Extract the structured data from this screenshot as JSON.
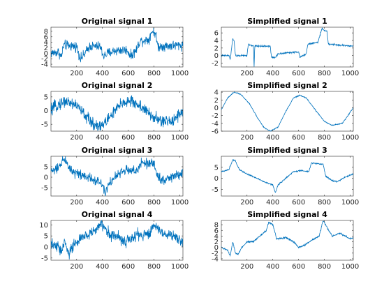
{
  "chart_data": [
    {
      "type": "line",
      "title": "Original signal 1",
      "xlim": [
        1,
        1024
      ],
      "ylim": [
        -5,
        9.5
      ],
      "xticks": [
        200,
        400,
        600,
        800,
        1000
      ],
      "yticks": [
        -4,
        -2,
        0,
        2,
        4,
        6,
        8
      ],
      "color": "#0072bd",
      "noise": 0.9,
      "series": [
        {
          "anchors": [
            [
              1,
              0
            ],
            [
              60,
              0.5
            ],
            [
              80,
              -1.5
            ],
            [
              100,
              3
            ],
            [
              200,
              2.5
            ],
            [
              230,
              -2
            ],
            [
              260,
              -0.5
            ],
            [
              300,
              2.5
            ],
            [
              380,
              2.5
            ],
            [
              410,
              -1
            ],
            [
              440,
              0
            ],
            [
              500,
              1
            ],
            [
              590,
              1.2
            ],
            [
              620,
              -1
            ],
            [
              660,
              1
            ],
            [
              690,
              4.5
            ],
            [
              760,
              5
            ],
            [
              780,
              8
            ],
            [
              810,
              7.5
            ],
            [
              830,
              2.5
            ],
            [
              1024,
              3
            ]
          ]
        }
      ]
    },
    {
      "type": "line",
      "title": "Simplified signal 1",
      "xlim": [
        1,
        1024
      ],
      "ylim": [
        -3,
        7.5
      ],
      "xticks": [
        200,
        400,
        600,
        800,
        1000
      ],
      "yticks": [
        -2,
        0,
        2,
        4,
        6
      ],
      "color": "#0072bd",
      "noise": 0.12,
      "series": [
        {
          "anchors": [
            [
              1,
              0
            ],
            [
              60,
              0
            ],
            [
              70,
              -1
            ],
            [
              90,
              4.5
            ],
            [
              100,
              4
            ],
            [
              110,
              0
            ],
            [
              200,
              0
            ],
            [
              210,
              3
            ],
            [
              250,
              2.5
            ],
            [
              255,
              -3
            ],
            [
              260,
              2.5
            ],
            [
              380,
              2.5
            ],
            [
              390,
              -0.5
            ],
            [
              420,
              -0.5
            ],
            [
              440,
              0.5
            ],
            [
              530,
              0.8
            ],
            [
              600,
              1
            ],
            [
              610,
              -0.5
            ],
            [
              660,
              0.5
            ],
            [
              670,
              3
            ],
            [
              750,
              3.5
            ],
            [
              780,
              7
            ],
            [
              820,
              6.5
            ],
            [
              830,
              3
            ],
            [
              1024,
              2.5
            ]
          ]
        }
      ]
    },
    {
      "type": "line",
      "title": "Original signal 2",
      "xlim": [
        1,
        1024
      ],
      "ylim": [
        -7.5,
        7
      ],
      "xticks": [
        200,
        400,
        600,
        800,
        1000
      ],
      "yticks": [
        -5,
        0,
        5
      ],
      "color": "#0072bd",
      "noise": 1.1,
      "series": [
        {
          "anchors": [
            [
              1,
              0
            ],
            [
              50,
              2
            ],
            [
              110,
              3.5
            ],
            [
              200,
              2
            ],
            [
              270,
              -2
            ],
            [
              330,
              -5
            ],
            [
              400,
              -5.5
            ],
            [
              480,
              -1
            ],
            [
              560,
              3
            ],
            [
              620,
              3.5
            ],
            [
              700,
              1.5
            ],
            [
              780,
              -2
            ],
            [
              860,
              -4
            ],
            [
              930,
              -4
            ],
            [
              1024,
              0
            ]
          ]
        }
      ]
    },
    {
      "type": "line",
      "title": "Simplified signal 2",
      "xlim": [
        1,
        1024
      ],
      "ylim": [
        -6,
        4.2
      ],
      "xticks": [
        200,
        400,
        600,
        800,
        1000
      ],
      "yticks": [
        -6,
        -4,
        -2,
        0,
        2,
        4
      ],
      "color": "#0072bd",
      "noise": 0.06,
      "series": [
        {
          "anchors": [
            [
              1,
              -0.5
            ],
            [
              50,
              2.5
            ],
            [
              100,
              4
            ],
            [
              150,
              3.5
            ],
            [
              220,
              1
            ],
            [
              280,
              -2.5
            ],
            [
              330,
              -5
            ],
            [
              380,
              -6
            ],
            [
              440,
              -5
            ],
            [
              500,
              -1
            ],
            [
              560,
              2.5
            ],
            [
              610,
              3.2
            ],
            [
              660,
              2.5
            ],
            [
              740,
              -1
            ],
            [
              800,
              -3.5
            ],
            [
              860,
              -4.5
            ],
            [
              940,
              -4
            ],
            [
              1024,
              0
            ]
          ]
        }
      ]
    },
    {
      "type": "line",
      "title": "Original signal 3",
      "xlim": [
        1,
        1024
      ],
      "ylim": [
        -9,
        10
      ],
      "xticks": [
        200,
        400,
        600,
        800,
        1000
      ],
      "yticks": [
        -5,
        0,
        5
      ],
      "color": "#0072bd",
      "noise": 1.2,
      "series": [
        {
          "anchors": [
            [
              1,
              3
            ],
            [
              60,
              4
            ],
            [
              90,
              8.5
            ],
            [
              120,
              7.5
            ],
            [
              160,
              3
            ],
            [
              200,
              2
            ],
            [
              260,
              1
            ],
            [
              330,
              -1
            ],
            [
              400,
              -3
            ],
            [
              420,
              -7
            ],
            [
              450,
              -3
            ],
            [
              500,
              0
            ],
            [
              560,
              3
            ],
            [
              620,
              3.5
            ],
            [
              680,
              3
            ],
            [
              700,
              7
            ],
            [
              760,
              6.5
            ],
            [
              800,
              7
            ],
            [
              820,
              1
            ],
            [
              860,
              -1
            ],
            [
              900,
              -1
            ],
            [
              960,
              0.5
            ],
            [
              1024,
              2
            ]
          ]
        }
      ]
    },
    {
      "type": "line",
      "title": "Simplified signal 3",
      "xlim": [
        1,
        1024
      ],
      "ylim": [
        -8,
        10
      ],
      "xticks": [
        200,
        400,
        600,
        800,
        1000
      ],
      "yticks": [
        -5,
        0,
        5
      ],
      "color": "#0072bd",
      "noise": 0.15,
      "series": [
        {
          "anchors": [
            [
              1,
              3
            ],
            [
              60,
              4
            ],
            [
              90,
              8.5
            ],
            [
              110,
              8
            ],
            [
              140,
              4
            ],
            [
              200,
              2
            ],
            [
              260,
              0.5
            ],
            [
              330,
              -1.5
            ],
            [
              400,
              -3
            ],
            [
              420,
              -6.5
            ],
            [
              440,
              -3
            ],
            [
              500,
              0
            ],
            [
              560,
              3
            ],
            [
              620,
              3.5
            ],
            [
              680,
              3
            ],
            [
              700,
              7
            ],
            [
              760,
              6.5
            ],
            [
              790,
              6.5
            ],
            [
              810,
              1
            ],
            [
              860,
              -1
            ],
            [
              900,
              -1.5
            ],
            [
              960,
              0.5
            ],
            [
              1024,
              2
            ]
          ]
        }
      ]
    },
    {
      "type": "line",
      "title": "Original signal 4",
      "xlim": [
        1,
        1024
      ],
      "ylim": [
        -6,
        12
      ],
      "xticks": [
        200,
        400,
        600,
        800,
        1000
      ],
      "yticks": [
        -5,
        0,
        5,
        10
      ],
      "color": "#0072bd",
      "noise": 1.3,
      "series": [
        {
          "anchors": [
            [
              1,
              1
            ],
            [
              60,
              0
            ],
            [
              80,
              -2
            ],
            [
              110,
              2
            ],
            [
              140,
              -3
            ],
            [
              180,
              1
            ],
            [
              240,
              4
            ],
            [
              300,
              6
            ],
            [
              350,
              8
            ],
            [
              380,
              10
            ],
            [
              420,
              9
            ],
            [
              450,
              6
            ],
            [
              500,
              5
            ],
            [
              560,
              3
            ],
            [
              600,
              2.5
            ],
            [
              640,
              4
            ],
            [
              680,
              6
            ],
            [
              700,
              5
            ],
            [
              760,
              6
            ],
            [
              800,
              10
            ],
            [
              840,
              8
            ],
            [
              880,
              6
            ],
            [
              940,
              5
            ],
            [
              1024,
              3
            ]
          ]
        }
      ]
    },
    {
      "type": "line",
      "title": "Simplified signal 4",
      "xlim": [
        1,
        1024
      ],
      "ylim": [
        -4.5,
        9.5
      ],
      "xticks": [
        200,
        400,
        600,
        800,
        1000
      ],
      "yticks": [
        -4,
        -2,
        0,
        2,
        4,
        6,
        8
      ],
      "color": "#0072bd",
      "noise": 0.15,
      "series": [
        {
          "anchors": [
            [
              1,
              0
            ],
            [
              50,
              -1
            ],
            [
              70,
              -3
            ],
            [
              90,
              2
            ],
            [
              110,
              -2
            ],
            [
              130,
              -2.5
            ],
            [
              160,
              0
            ],
            [
              200,
              2
            ],
            [
              250,
              2
            ],
            [
              300,
              4
            ],
            [
              350,
              6
            ],
            [
              370,
              9
            ],
            [
              400,
              8
            ],
            [
              430,
              3
            ],
            [
              500,
              3.5
            ],
            [
              560,
              2
            ],
            [
              600,
              0
            ],
            [
              650,
              1
            ],
            [
              700,
              2.5
            ],
            [
              760,
              4
            ],
            [
              790,
              9.5
            ],
            [
              820,
              7
            ],
            [
              860,
              4
            ],
            [
              920,
              5
            ],
            [
              1000,
              3
            ],
            [
              1024,
              3.5
            ]
          ]
        }
      ]
    }
  ]
}
